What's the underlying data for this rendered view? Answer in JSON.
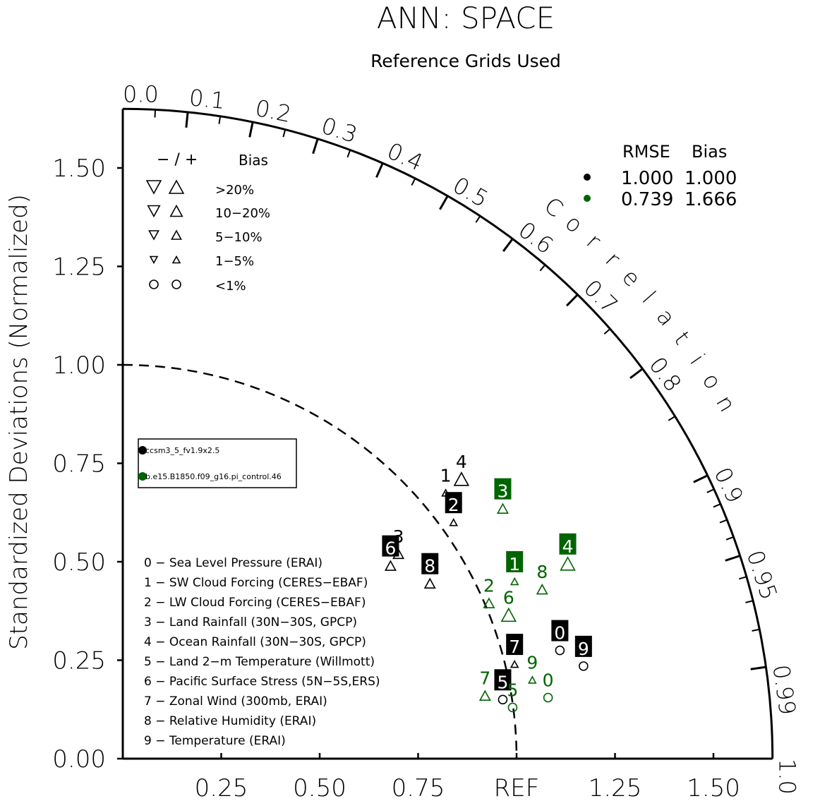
{
  "chart_data": {
    "type": "scatter",
    "subtype": "taylor-diagram",
    "title": "ANN: SPACE",
    "subtitle": "Reference Grids Used",
    "ylabel": "Standardized Deviations (Normalized)",
    "arc_label": "Correlation",
    "ref_label": "REF",
    "std_ticks": [
      "0.00",
      "0.25",
      "0.50",
      "0.75",
      "1.00",
      "1.25",
      "1.50"
    ],
    "x_ticks": [
      "0.25",
      "0.50",
      "0.75",
      "REF",
      "1.25",
      "1.50"
    ],
    "corr_ticks": [
      "0.0",
      "0.1",
      "0.2",
      "0.3",
      "0.4",
      "0.5",
      "0.6",
      "0.7",
      "0.8",
      "0.9",
      "0.95",
      "0.99",
      "1.0"
    ],
    "std_max": 1.65,
    "ref_std": 1.0,
    "bias_legend": {
      "header_signs": "− / +",
      "header_label": "Bias",
      "rows": [
        ">20%",
        "10−20%",
        "5−10%",
        "1−5%",
        "<1%"
      ]
    },
    "rmse_bias_table": {
      "headers": [
        "RMSE",
        "Bias"
      ],
      "rows": [
        {
          "color": "#000000",
          "rmse": "1.000",
          "bias": "1.000"
        },
        {
          "color": "#006400",
          "rmse": "0.739",
          "bias": "1.666"
        }
      ]
    },
    "cases": [
      {
        "name": "ccsm3_5_fv1.9x2.5",
        "color": "#000000"
      },
      {
        "name": "b.e15.B1850.f09_g16.pi_control.46",
        "color": "#006400"
      }
    ],
    "variables": [
      "0 − Sea Level Pressure (ERAI)",
      "1 − SW Cloud Forcing (CERES−EBAF)",
      "2 − LW Cloud Forcing (CERES−EBAF)",
      "3 − Land Rainfall (30N−30S, GPCP)",
      "4 − Ocean Rainfall (30N−30S, GPCP)",
      "5 − Land 2−m Temperature (Willmott)",
      "6 − Pacific Surface Stress (5N−5S,ERS)",
      "7 − Zonal Wind (300mb, ERAI)",
      "8 − Relative Humidity (ERAI)",
      "9 − Temperature (ERAI)"
    ],
    "series": [
      {
        "name": "ccsm3_5_fv1.9x2.5",
        "color": "#000000",
        "points": [
          {
            "label": "0",
            "x": 1.11,
            "y": 0.275,
            "marker": "circle",
            "boxed": true
          },
          {
            "label": "1",
            "x": 0.82,
            "y": 0.675,
            "marker": "triangle-up-small",
            "boxed": false
          },
          {
            "label": "2",
            "x": 0.84,
            "y": 0.6,
            "marker": "triangle-up-small",
            "boxed": true
          },
          {
            "label": "3",
            "x": 0.7,
            "y": 0.52,
            "marker": "triangle-up",
            "boxed": false
          },
          {
            "label": "4",
            "x": 0.86,
            "y": 0.71,
            "marker": "triangle-up-large",
            "boxed": false
          },
          {
            "label": "5",
            "x": 0.965,
            "y": 0.15,
            "marker": "circle",
            "boxed": true
          },
          {
            "label": "6",
            "x": 0.68,
            "y": 0.49,
            "marker": "triangle-up",
            "boxed": true
          },
          {
            "label": "7",
            "x": 0.995,
            "y": 0.24,
            "marker": "triangle-up-small",
            "boxed": true
          },
          {
            "label": "8",
            "x": 0.78,
            "y": 0.445,
            "marker": "triangle-up",
            "boxed": true
          },
          {
            "label": "9",
            "x": 1.17,
            "y": 0.235,
            "marker": "circle",
            "boxed": true
          }
        ]
      },
      {
        "name": "b.e15.B1850.f09_g16.pi_control.46",
        "color": "#006400",
        "points": [
          {
            "label": "0",
            "x": 1.08,
            "y": 0.155,
            "marker": "circle",
            "boxed": false
          },
          {
            "label": "1",
            "x": 0.995,
            "y": 0.45,
            "marker": "triangle-up-small",
            "boxed": true
          },
          {
            "label": "2",
            "x": 0.93,
            "y": 0.395,
            "marker": "triangle-up",
            "boxed": false
          },
          {
            "label": "3",
            "x": 0.965,
            "y": 0.635,
            "marker": "triangle-up",
            "boxed": true
          },
          {
            "label": "4",
            "x": 1.13,
            "y": 0.495,
            "marker": "triangle-up-large",
            "boxed": true
          },
          {
            "label": "5",
            "x": 0.99,
            "y": 0.13,
            "marker": "circle",
            "boxed": false
          },
          {
            "label": "6",
            "x": 0.98,
            "y": 0.365,
            "marker": "triangle-up-large",
            "boxed": false
          },
          {
            "label": "7",
            "x": 0.92,
            "y": 0.16,
            "marker": "triangle-up",
            "boxed": false
          },
          {
            "label": "8",
            "x": 1.065,
            "y": 0.43,
            "marker": "triangle-up",
            "boxed": false
          },
          {
            "label": "9",
            "x": 1.04,
            "y": 0.2,
            "marker": "triangle-up-small",
            "boxed": false
          }
        ]
      }
    ]
  }
}
